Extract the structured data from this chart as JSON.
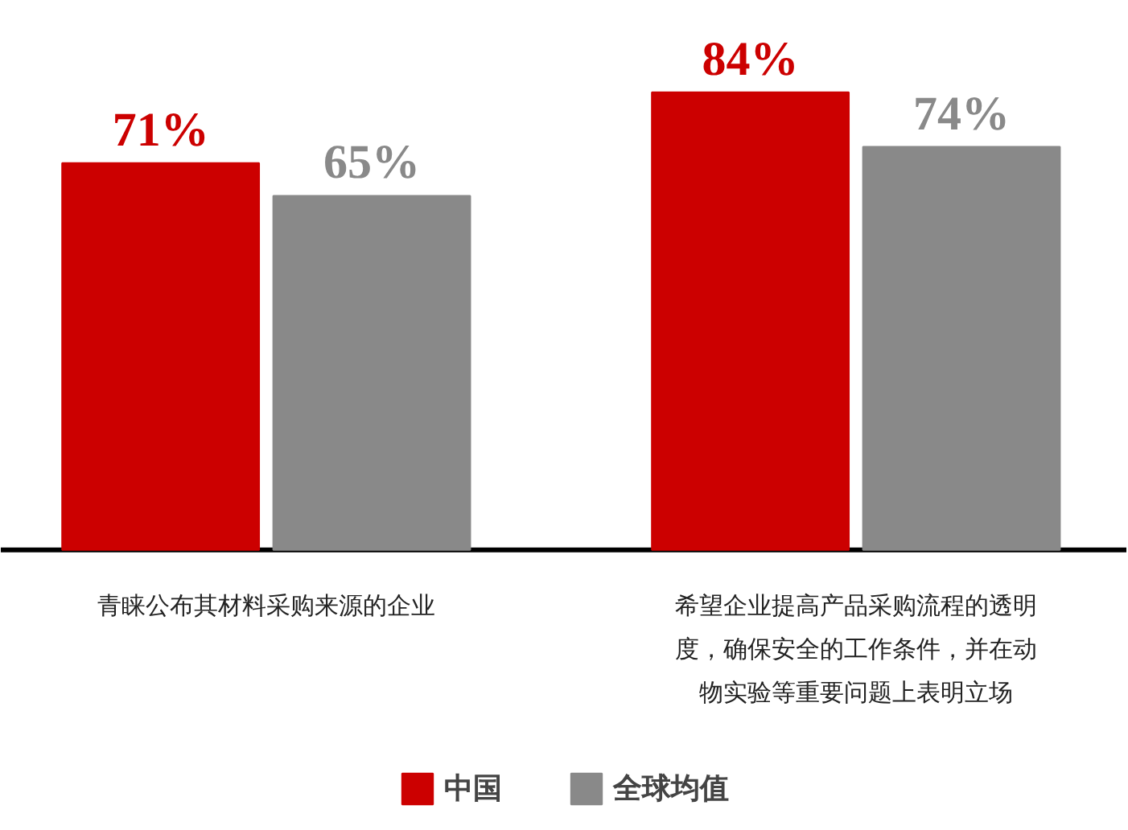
{
  "chart_data": {
    "type": "bar",
    "categories": [
      "青睐公布其材料采购来源的企业",
      "希望企业提高产品采购流程的透明度，确保安全的工作条件，并在动物实验等重要问题上表明立场"
    ],
    "series": [
      {
        "name": "中国",
        "color": "#cc0000",
        "values": [
          71,
          84
        ],
        "value_labels": [
          "71%",
          "84%"
        ]
      },
      {
        "name": "全球均值",
        "color": "#898989",
        "values": [
          65,
          74
        ],
        "value_labels": [
          "65%",
          "74%"
        ]
      }
    ],
    "legend": "bottom"
  }
}
